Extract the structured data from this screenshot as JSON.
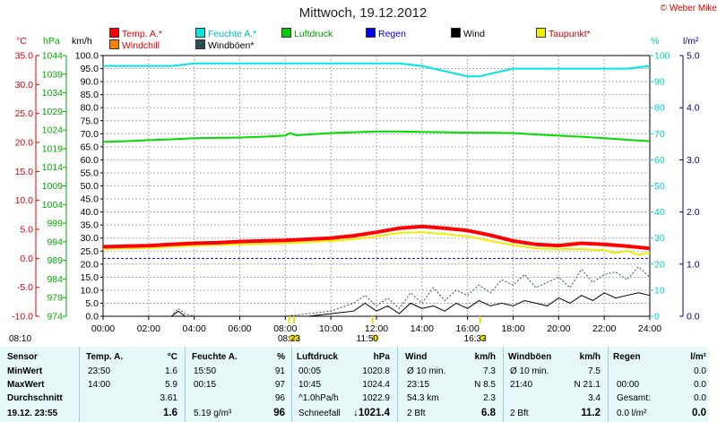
{
  "header": {
    "title": "Mittwoch, 19.12.2012",
    "credit": "© Weber Mike"
  },
  "legend": [
    {
      "label": "Temp. A.*",
      "color": "#ff0000"
    },
    {
      "label": "Feuchte A.*",
      "color": "#00e5e5"
    },
    {
      "label": "Luftdruck",
      "color": "#00cc00"
    },
    {
      "label": "Regen",
      "color": "#0000ee"
    },
    {
      "label": "Wind",
      "color": "#000000"
    },
    {
      "label": "Taupunkt*",
      "color": "#eeee00"
    },
    {
      "label": "Windchill",
      "color": "#ff8000"
    },
    {
      "label": "Windböen*",
      "color": "#2f4f4f"
    }
  ],
  "units": {
    "temp": "°C",
    "pressure": "hPa",
    "wind": "km/h",
    "humidity": "%",
    "rain": "l/m²"
  },
  "chart_data": {
    "type": "line",
    "x_ticks": [
      "00:00",
      "02:00",
      "04:00",
      "06:00",
      "08:00",
      "10:00",
      "12:00",
      "14:00",
      "16:00",
      "18:00",
      "20:00",
      "22:00",
      "24:00"
    ],
    "xlim": [
      0,
      24
    ],
    "axes": {
      "temp": {
        "ticks": [
          "35.0",
          "30.0",
          "25.0",
          "20.0",
          "15.0",
          "10.0",
          "5.0",
          "0.0",
          "-5.0",
          "-10.0"
        ],
        "ylim": [
          -10,
          35
        ],
        "color": "#dd0000"
      },
      "pressure": {
        "ticks": [
          "1044",
          "1039",
          "1034",
          "1029",
          "1024",
          "1019",
          "1014",
          "1009",
          "1004",
          "999",
          "994",
          "989",
          "984",
          "979",
          "974"
        ],
        "ylim": [
          974,
          1044
        ],
        "color": "#00aa00"
      },
      "wind": {
        "ticks": [
          "100.0",
          "95.0",
          "90.0",
          "85.0",
          "80.0",
          "75.0",
          "70.0",
          "65.0",
          "60.0",
          "55.0",
          "50.0",
          "45.0",
          "40.0",
          "35.0",
          "30.0",
          "25.0",
          "20.0",
          "15.0",
          "10.0",
          "5.0",
          "0.0"
        ],
        "ylim": [
          0,
          100
        ],
        "color": "#000000"
      },
      "humidity": {
        "ticks": [
          "100",
          "90",
          "80",
          "70",
          "60",
          "50",
          "40",
          "30",
          "20",
          "10",
          "0"
        ],
        "ylim": [
          0,
          100
        ],
        "color": "#00cccc"
      },
      "rain": {
        "ticks": [
          "5.0",
          "4.0",
          "3.0",
          "2.0",
          "1.0",
          "0.0"
        ],
        "ylim": [
          0,
          5
        ],
        "color": "#000080"
      }
    },
    "series": [
      {
        "name": "Feuchte A.*",
        "axis": "humidity",
        "color": "#00e5e5",
        "x": [
          0,
          1,
          2,
          3,
          4,
          5,
          6,
          7,
          8,
          9,
          10,
          11,
          12,
          13,
          14,
          15,
          15.5,
          16,
          16.5,
          17,
          18,
          19,
          20,
          21,
          22,
          23,
          24
        ],
        "y": [
          96,
          96,
          96,
          96,
          97,
          97,
          97,
          97,
          97,
          97,
          97,
          97,
          97,
          97,
          96,
          94,
          93,
          92,
          92,
          93,
          95,
          95,
          95,
          95,
          95,
          95,
          96
        ]
      },
      {
        "name": "Luftdruck",
        "axis": "pressure",
        "color": "#00dd00",
        "x": [
          0,
          1,
          2,
          3,
          4,
          5,
          6,
          7,
          8,
          8.2,
          8.5,
          9,
          10,
          11,
          12,
          13,
          14,
          15,
          16,
          17,
          18,
          19,
          20,
          21,
          22,
          23,
          24
        ],
        "y": [
          1020.8,
          1021.0,
          1021.3,
          1021.5,
          1021.8,
          1021.9,
          1022.0,
          1022.2,
          1022.5,
          1023.2,
          1022.6,
          1022.8,
          1023.2,
          1023.4,
          1023.6,
          1023.6,
          1023.5,
          1023.4,
          1023.3,
          1023.3,
          1023.2,
          1022.8,
          1022.5,
          1022.2,
          1021.8,
          1021.4,
          1021.0
        ]
      },
      {
        "name": "Taupunkt*",
        "axis": "temp",
        "color": "#eeee00",
        "x": [
          0,
          1,
          2,
          3,
          4,
          5,
          6,
          7,
          8,
          9,
          10,
          11,
          12,
          13,
          14,
          15,
          16,
          17,
          18,
          19,
          20,
          21,
          22,
          22.5,
          23,
          23.5,
          24
        ],
        "y": [
          1.6,
          1.7,
          1.8,
          2.0,
          2.2,
          2.3,
          2.4,
          2.5,
          2.6,
          2.8,
          3.0,
          3.3,
          3.8,
          4.4,
          4.5,
          4.2,
          3.8,
          3.0,
          2.3,
          1.7,
          1.6,
          1.6,
          1.4,
          0.9,
          1.3,
          0.6,
          1.0
        ]
      },
      {
        "name": "Temp. A.*",
        "axis": "temp",
        "color": "#ff0000",
        "x": [
          0,
          1,
          2,
          3,
          4,
          5,
          6,
          7,
          8,
          9,
          10,
          11,
          12,
          13,
          14,
          15,
          16,
          17,
          18,
          19,
          20,
          21,
          22,
          23,
          24
        ],
        "y": [
          2.0,
          2.1,
          2.2,
          2.4,
          2.6,
          2.7,
          2.9,
          3.0,
          3.1,
          3.3,
          3.5,
          3.9,
          4.5,
          5.2,
          5.5,
          5.2,
          4.8,
          4.0,
          3.0,
          2.4,
          2.2,
          2.6,
          2.4,
          2.1,
          1.7
        ]
      },
      {
        "name": "Windböen*",
        "axis": "wind",
        "color": "#2f4f4f",
        "dashed": true,
        "x": [
          0,
          2,
          3,
          3.3,
          3.6,
          4,
          6,
          8,
          9,
          10,
          11,
          11.5,
          12,
          12.5,
          13,
          13.5,
          14,
          14.5,
          15,
          15.5,
          16,
          16.5,
          17,
          17.5,
          18,
          18.5,
          19,
          19.5,
          20,
          20.5,
          21,
          21.5,
          22,
          22.5,
          23,
          23.5,
          24
        ],
        "y": [
          0,
          0,
          0,
          3,
          1,
          0,
          0,
          0,
          1,
          2,
          5,
          8,
          4,
          7,
          3,
          9,
          5,
          11,
          6,
          10,
          8,
          12,
          9,
          14,
          12,
          16,
          11,
          13,
          15,
          11,
          18,
          13,
          16,
          17,
          14,
          19,
          15
        ]
      },
      {
        "name": "Wind",
        "axis": "wind",
        "color": "#000000",
        "x": [
          0,
          2,
          3,
          3.3,
          3.6,
          4,
          6,
          8,
          9,
          10,
          11,
          11.5,
          12,
          12.5,
          13,
          13.5,
          14,
          14.5,
          15,
          15.5,
          16,
          16.5,
          17,
          17.5,
          18,
          18.5,
          19,
          19.5,
          20,
          20.5,
          21,
          21.5,
          22,
          22.5,
          23,
          23.5,
          24
        ],
        "y": [
          0,
          0,
          0,
          2,
          0,
          0,
          0,
          0,
          0,
          1,
          2,
          5,
          2,
          4,
          1,
          5,
          3,
          4,
          2,
          5,
          3,
          6,
          4,
          5,
          4,
          6,
          5,
          4,
          7,
          5,
          8,
          6,
          9,
          7,
          8,
          9,
          8
        ]
      }
    ],
    "reference_lines": [
      {
        "axis": "temp",
        "value": 0,
        "color": "#0000cc",
        "dashed": true
      }
    ],
    "time_markers": [
      {
        "label": "08:10",
        "x": 8.17,
        "kind": "sunrise"
      },
      {
        "label": "08:23",
        "x": 8.38,
        "kind": "sun"
      },
      {
        "label": "11:50",
        "x": 11.83,
        "kind": "noon"
      },
      {
        "label": "16:33",
        "x": 16.55,
        "kind": "sun"
      }
    ]
  },
  "stats": {
    "row_labels": [
      "Sensor",
      "MinWert",
      "MaxWert",
      "Durchschnitt",
      "19.12. 23:55"
    ],
    "temp": {
      "header": "Temp. A.",
      "unit": "°C",
      "rows": [
        [
          "23:50",
          "1.6"
        ],
        [
          "14:00",
          "5.9"
        ],
        [
          "",
          "3.61"
        ],
        [
          "",
          "1.6"
        ]
      ]
    },
    "humidity": {
      "header": "Feuchte A.",
      "unit": "%",
      "rows": [
        [
          "15:50",
          "91"
        ],
        [
          "00:15",
          "97"
        ],
        [
          "",
          "96"
        ],
        [
          "5.19 g/m³",
          "96"
        ]
      ]
    },
    "pressure": {
      "header": "Luftdruck",
      "unit": "hPa",
      "rows": [
        [
          "00:05",
          "1020.8"
        ],
        [
          "10:45",
          "1024.4"
        ],
        [
          "^1.0hPa/h",
          "1022.9"
        ],
        [
          "Schneefall",
          "↓1021.4"
        ]
      ]
    },
    "wind": {
      "header": "Wind",
      "unit": "km/h",
      "rows": [
        [
          "Ø 10 min.",
          "7.3"
        ],
        [
          "23:15",
          "N 8.5"
        ],
        [
          "54.3 km",
          "2.3"
        ],
        [
          "2 Bft",
          "6.8"
        ]
      ]
    },
    "gusts": {
      "header": "Windböen",
      "unit": "km/h",
      "rows": [
        [
          "Ø 10 min.",
          "7.5"
        ],
        [
          "21:40",
          "N 21.1"
        ],
        [
          "",
          "3.4"
        ],
        [
          "2 Bft",
          "11.2"
        ]
      ]
    },
    "rain": {
      "header": "Regen",
      "unit": "l/m²",
      "rows": [
        [
          "",
          "0.0"
        ],
        [
          "00:00",
          "0.0"
        ],
        [
          "Gesamt:",
          "0.0"
        ],
        [
          "0.0 l/m²",
          "0.0"
        ]
      ]
    }
  }
}
